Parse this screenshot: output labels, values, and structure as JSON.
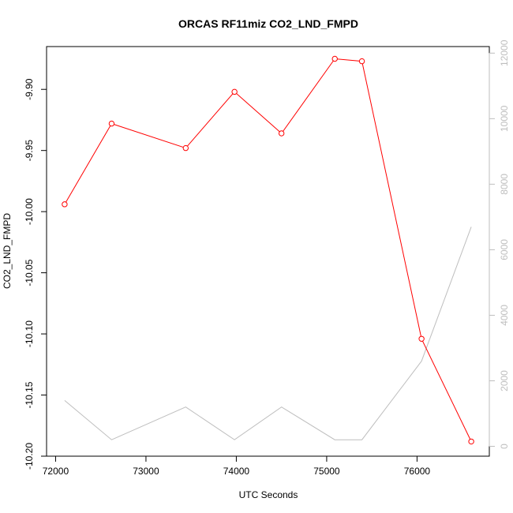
{
  "chart_data": {
    "type": "line",
    "title": "ORCAS RF11miz CO2_LND_FMPD",
    "xlabel": "UTC Seconds",
    "ylabel": "CO2_LND_FMPD",
    "x_ticks": [
      72000,
      73000,
      74000,
      75000,
      76000
    ],
    "y_ticks": [
      "-9.90",
      "-9.95",
      "-10.00",
      "-10.05",
      "-10.10",
      "-10.15",
      "-10.20"
    ],
    "y2_ticks": [
      "0",
      "2000",
      "4000",
      "6000",
      "8000",
      "10000",
      "12000"
    ],
    "xlim": [
      71900,
      76800
    ],
    "ylim": [
      -10.2,
      -9.865
    ],
    "y2lim": [
      -300,
      12200
    ],
    "series": [
      {
        "axis": "left",
        "color": "#ff0000",
        "markers": "open-circle",
        "x": [
          72100,
          72620,
          73440,
          73980,
          74500,
          75090,
          75390,
          76050,
          76600
        ],
        "y": [
          -9.994,
          -9.928,
          -9.948,
          -9.902,
          -9.936,
          -9.875,
          -9.877,
          -10.104,
          -10.188
        ]
      },
      {
        "axis": "right",
        "color": "#bebebe",
        "markers": "none",
        "x": [
          72100,
          72620,
          73440,
          73980,
          74500,
          75090,
          75390,
          76050,
          76600
        ],
        "y": [
          1400,
          200,
          1200,
          200,
          1200,
          200,
          200,
          2600,
          6700
        ]
      }
    ]
  }
}
